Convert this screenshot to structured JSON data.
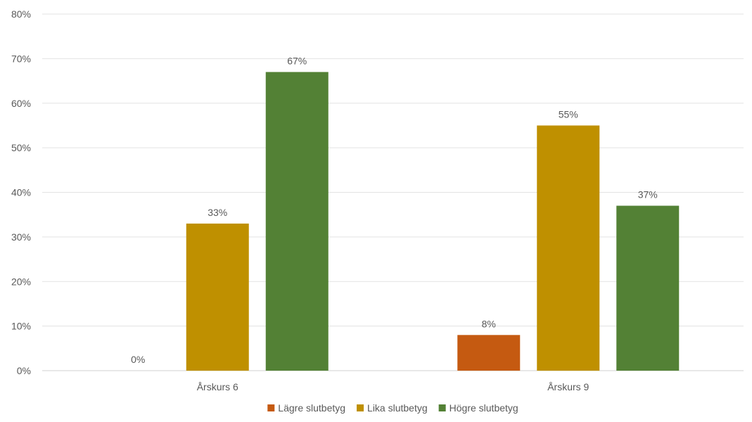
{
  "chart_data": {
    "type": "bar",
    "categories": [
      "Årskurs 6",
      "Årskurs 9"
    ],
    "series": [
      {
        "name": "Lägre slutbetyg",
        "values": [
          0,
          8
        ],
        "color": "#C55A11"
      },
      {
        "name": "Lika slutbetyg",
        "values": [
          33,
          55
        ],
        "color": "#BF9000"
      },
      {
        "name": "Högre slutbetyg",
        "values": [
          67,
          37
        ],
        "color": "#538135"
      }
    ],
    "value_suffix": "%",
    "ylim": [
      0,
      80
    ],
    "yticks": [
      0,
      10,
      20,
      30,
      40,
      50,
      60,
      70,
      80
    ],
    "ytick_labels": [
      "0%",
      "10%",
      "20%",
      "30%",
      "40%",
      "50%",
      "60%",
      "70%",
      "80%"
    ],
    "grid": true,
    "legend_position": "bottom"
  }
}
